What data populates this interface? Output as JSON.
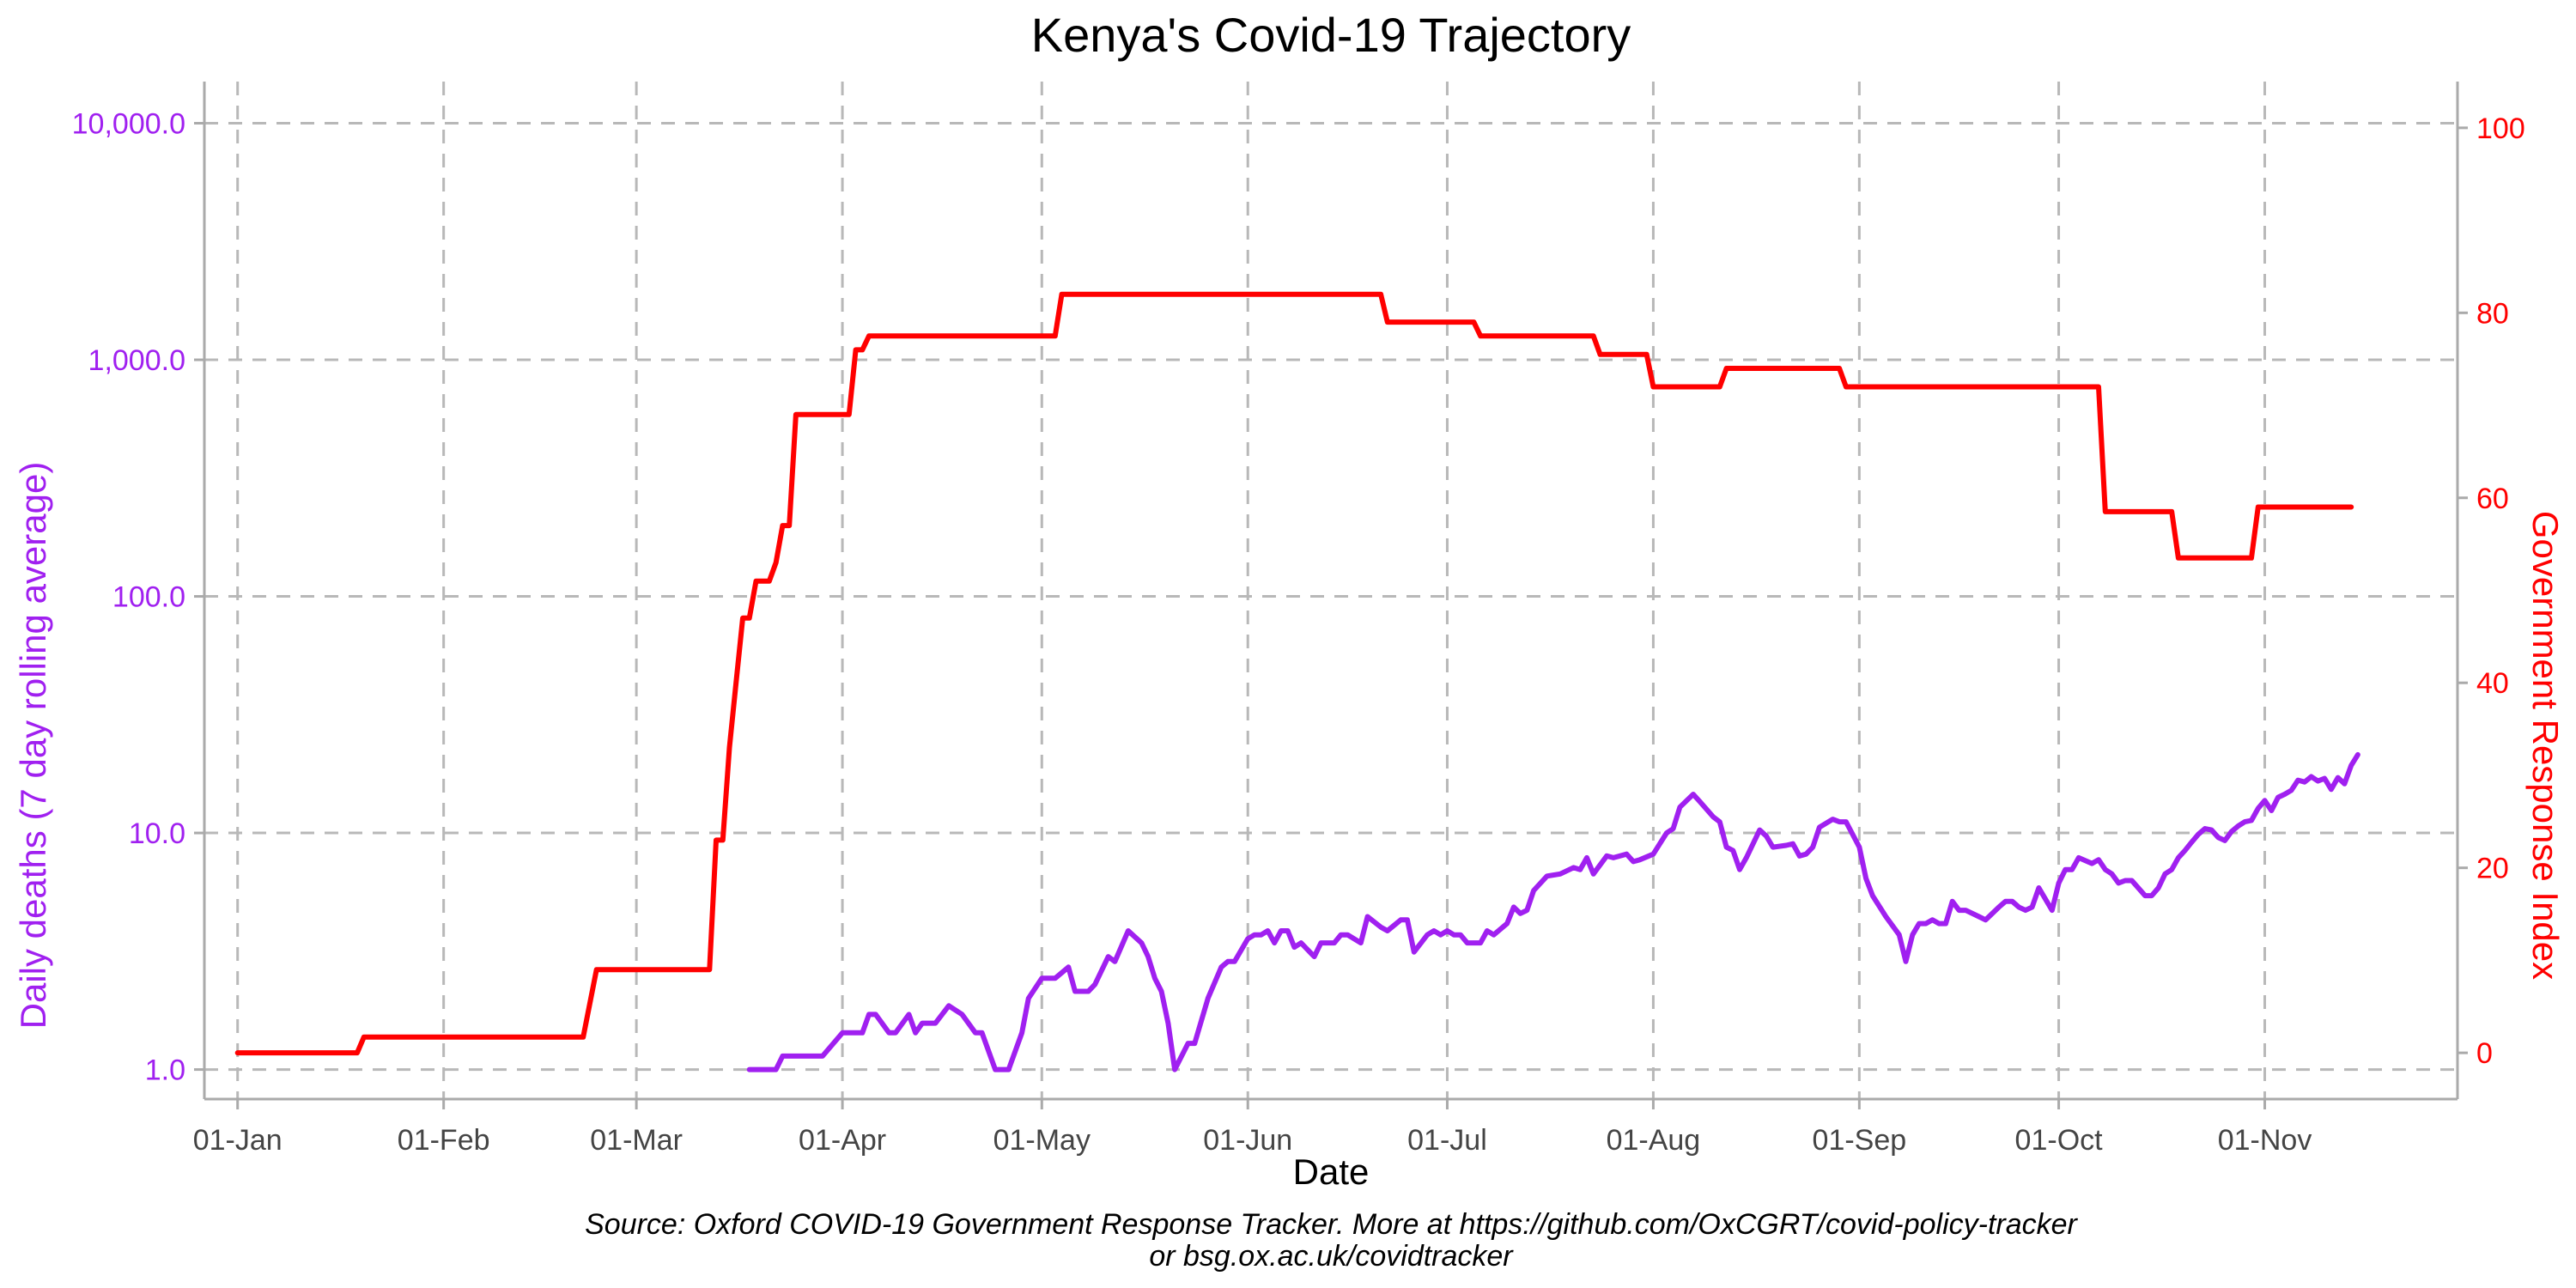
{
  "chart_data": {
    "type": "line",
    "title": "Kenya's Covid-19 Trajectory",
    "xlabel": "Date",
    "ylabel_left": "Daily deaths (7 day rolling average)",
    "ylabel_right": "Government Response Index",
    "caption_line1": "Source: Oxford COVID-19 Government Response Tracker. More at https://github.com/OxCGRT/covid-policy-tracker",
    "caption_line2": "or bsg.ox.ac.uk/covidtracker",
    "x_range": [
      "2019-12-27",
      "2020-11-30"
    ],
    "y_left": {
      "scale": "log10",
      "range": [
        0.75,
        15000
      ],
      "ticks": [
        1,
        10,
        100,
        1000,
        10000
      ],
      "tick_labels": [
        "1.0",
        "10.0",
        "100.0",
        "1,000.0",
        "10,000.0"
      ],
      "color": "#a020f0"
    },
    "y_right": {
      "scale": "linear",
      "range": [
        -5,
        105
      ],
      "ticks": [
        0,
        20,
        40,
        60,
        80,
        100
      ],
      "tick_labels": [
        "0",
        "20",
        "40",
        "60",
        "80",
        "100"
      ],
      "color": "#ff0000"
    },
    "x_ticks": [
      {
        "date": "2020-01-01",
        "label": "01-Jan"
      },
      {
        "date": "2020-02-01",
        "label": "01-Feb"
      },
      {
        "date": "2020-03-01",
        "label": "01-Mar"
      },
      {
        "date": "2020-04-01",
        "label": "01-Apr"
      },
      {
        "date": "2020-05-01",
        "label": "01-May"
      },
      {
        "date": "2020-06-01",
        "label": "01-Jun"
      },
      {
        "date": "2020-07-01",
        "label": "01-Jul"
      },
      {
        "date": "2020-08-01",
        "label": "01-Aug"
      },
      {
        "date": "2020-09-01",
        "label": "01-Sep"
      },
      {
        "date": "2020-10-01",
        "label": "01-Oct"
      },
      {
        "date": "2020-11-01",
        "label": "01-Nov"
      }
    ],
    "grid": true,
    "series": [
      {
        "axis": "right",
        "color": "#ff0000",
        "points": [
          [
            "2020-01-01",
            0
          ],
          [
            "2020-01-19",
            0
          ],
          [
            "2020-01-20",
            1.7
          ],
          [
            "2020-02-22",
            1.7
          ],
          [
            "2020-02-24",
            9
          ],
          [
            "2020-03-12",
            9
          ],
          [
            "2020-03-13",
            23
          ],
          [
            "2020-03-14",
            23
          ],
          [
            "2020-03-15",
            33
          ],
          [
            "2020-03-16",
            40
          ],
          [
            "2020-03-17",
            47
          ],
          [
            "2020-03-18",
            47
          ],
          [
            "2020-03-19",
            51
          ],
          [
            "2020-03-21",
            51
          ],
          [
            "2020-03-22",
            53
          ],
          [
            "2020-03-23",
            57
          ],
          [
            "2020-03-24",
            57
          ],
          [
            "2020-03-25",
            69
          ],
          [
            "2020-03-26",
            69
          ],
          [
            "2020-04-02",
            69
          ],
          [
            "2020-04-03",
            76
          ],
          [
            "2020-04-04",
            76
          ],
          [
            "2020-04-05",
            77.5
          ],
          [
            "2020-05-03",
            77.5
          ],
          [
            "2020-05-04",
            82
          ],
          [
            "2020-06-21",
            82
          ],
          [
            "2020-06-22",
            79
          ],
          [
            "2020-07-05",
            79
          ],
          [
            "2020-07-06",
            77.5
          ],
          [
            "2020-07-23",
            77.5
          ],
          [
            "2020-07-24",
            75.5
          ],
          [
            "2020-07-31",
            75.5
          ],
          [
            "2020-08-01",
            72
          ],
          [
            "2020-08-11",
            72
          ],
          [
            "2020-08-12",
            74
          ],
          [
            "2020-08-29",
            74
          ],
          [
            "2020-08-30",
            72
          ],
          [
            "2020-10-07",
            72
          ],
          [
            "2020-10-08",
            58.5
          ],
          [
            "2020-10-18",
            58.5
          ],
          [
            "2020-10-19",
            53.5
          ],
          [
            "2020-10-30",
            53.5
          ],
          [
            "2020-10-31",
            59
          ],
          [
            "2020-11-14",
            59
          ]
        ]
      },
      {
        "axis": "left",
        "color": "#a020f0",
        "points": [
          [
            "2020-03-18",
            1.0
          ],
          [
            "2020-03-22",
            1.0
          ],
          [
            "2020-03-23",
            1.14
          ],
          [
            "2020-03-29",
            1.14
          ],
          [
            "2020-04-01",
            1.43
          ],
          [
            "2020-04-04",
            1.43
          ],
          [
            "2020-04-05",
            1.71
          ],
          [
            "2020-04-06",
            1.71
          ],
          [
            "2020-04-08",
            1.43
          ],
          [
            "2020-04-09",
            1.43
          ],
          [
            "2020-04-11",
            1.71
          ],
          [
            "2020-04-12",
            1.43
          ],
          [
            "2020-04-13",
            1.57
          ],
          [
            "2020-04-15",
            1.57
          ],
          [
            "2020-04-17",
            1.86
          ],
          [
            "2020-04-19",
            1.71
          ],
          [
            "2020-04-21",
            1.43
          ],
          [
            "2020-04-22",
            1.43
          ],
          [
            "2020-04-24",
            1.0
          ],
          [
            "2020-04-26",
            1.0
          ],
          [
            "2020-04-28",
            1.43
          ],
          [
            "2020-04-29",
            2.0
          ],
          [
            "2020-05-01",
            2.43
          ],
          [
            "2020-05-03",
            2.43
          ],
          [
            "2020-05-05",
            2.71
          ],
          [
            "2020-05-06",
            2.14
          ],
          [
            "2020-05-08",
            2.14
          ],
          [
            "2020-05-09",
            2.29
          ],
          [
            "2020-05-11",
            3.0
          ],
          [
            "2020-05-12",
            2.86
          ],
          [
            "2020-05-14",
            3.86
          ],
          [
            "2020-05-16",
            3.43
          ],
          [
            "2020-05-17",
            3.0
          ],
          [
            "2020-05-18",
            2.43
          ],
          [
            "2020-05-19",
            2.14
          ],
          [
            "2020-05-20",
            1.57
          ],
          [
            "2020-05-21",
            1.0
          ],
          [
            "2020-05-23",
            1.29
          ],
          [
            "2020-05-24",
            1.29
          ],
          [
            "2020-05-26",
            2.0
          ],
          [
            "2020-05-28",
            2.71
          ],
          [
            "2020-05-29",
            2.86
          ],
          [
            "2020-05-30",
            2.86
          ],
          [
            "2020-06-01",
            3.57
          ],
          [
            "2020-06-02",
            3.71
          ],
          [
            "2020-06-03",
            3.71
          ],
          [
            "2020-06-04",
            3.86
          ],
          [
            "2020-06-05",
            3.43
          ],
          [
            "2020-06-06",
            3.86
          ],
          [
            "2020-06-07",
            3.86
          ],
          [
            "2020-06-08",
            3.29
          ],
          [
            "2020-06-09",
            3.43
          ],
          [
            "2020-06-11",
            3.0
          ],
          [
            "2020-06-12",
            3.43
          ],
          [
            "2020-06-14",
            3.43
          ],
          [
            "2020-06-15",
            3.71
          ],
          [
            "2020-06-16",
            3.71
          ],
          [
            "2020-06-18",
            3.43
          ],
          [
            "2020-06-19",
            4.43
          ],
          [
            "2020-06-21",
            4.0
          ],
          [
            "2020-06-22",
            3.86
          ],
          [
            "2020-06-24",
            4.29
          ],
          [
            "2020-06-25",
            4.29
          ],
          [
            "2020-06-26",
            3.14
          ],
          [
            "2020-06-28",
            3.71
          ],
          [
            "2020-06-29",
            3.86
          ],
          [
            "2020-06-30",
            3.71
          ],
          [
            "2020-07-01",
            3.86
          ],
          [
            "2020-07-02",
            3.71
          ],
          [
            "2020-07-03",
            3.71
          ],
          [
            "2020-07-04",
            3.43
          ],
          [
            "2020-07-06",
            3.43
          ],
          [
            "2020-07-07",
            3.86
          ],
          [
            "2020-07-08",
            3.71
          ],
          [
            "2020-07-10",
            4.14
          ],
          [
            "2020-07-11",
            4.86
          ],
          [
            "2020-07-12",
            4.57
          ],
          [
            "2020-07-13",
            4.71
          ],
          [
            "2020-07-14",
            5.71
          ],
          [
            "2020-07-16",
            6.57
          ],
          [
            "2020-07-18",
            6.71
          ],
          [
            "2020-07-20",
            7.14
          ],
          [
            "2020-07-21",
            7.0
          ],
          [
            "2020-07-22",
            7.86
          ],
          [
            "2020-07-23",
            6.71
          ],
          [
            "2020-07-25",
            8.0
          ],
          [
            "2020-07-26",
            7.86
          ],
          [
            "2020-07-28",
            8.14
          ],
          [
            "2020-07-29",
            7.57
          ],
          [
            "2020-07-30",
            7.71
          ],
          [
            "2020-08-01",
            8.14
          ],
          [
            "2020-08-03",
            10.0
          ],
          [
            "2020-08-04",
            10.43
          ],
          [
            "2020-08-05",
            12.86
          ],
          [
            "2020-08-07",
            14.57
          ],
          [
            "2020-08-08",
            13.57
          ],
          [
            "2020-08-10",
            11.71
          ],
          [
            "2020-08-11",
            11.14
          ],
          [
            "2020-08-12",
            8.71
          ],
          [
            "2020-08-13",
            8.43
          ],
          [
            "2020-08-14",
            7.0
          ],
          [
            "2020-08-15",
            7.86
          ],
          [
            "2020-08-17",
            10.29
          ],
          [
            "2020-08-18",
            9.71
          ],
          [
            "2020-08-19",
            8.71
          ],
          [
            "2020-08-21",
            8.86
          ],
          [
            "2020-08-22",
            9.0
          ],
          [
            "2020-08-23",
            8.0
          ],
          [
            "2020-08-24",
            8.14
          ],
          [
            "2020-08-25",
            8.71
          ],
          [
            "2020-08-26",
            10.57
          ],
          [
            "2020-08-28",
            11.43
          ],
          [
            "2020-08-29",
            11.14
          ],
          [
            "2020-08-30",
            11.14
          ],
          [
            "2020-09-01",
            8.71
          ],
          [
            "2020-09-02",
            6.43
          ],
          [
            "2020-09-03",
            5.43
          ],
          [
            "2020-09-05",
            4.43
          ],
          [
            "2020-09-07",
            3.71
          ],
          [
            "2020-09-08",
            2.86
          ],
          [
            "2020-09-09",
            3.71
          ],
          [
            "2020-09-10",
            4.14
          ],
          [
            "2020-09-11",
            4.14
          ],
          [
            "2020-09-12",
            4.29
          ],
          [
            "2020-09-13",
            4.14
          ],
          [
            "2020-09-14",
            4.14
          ],
          [
            "2020-09-15",
            5.14
          ],
          [
            "2020-09-16",
            4.71
          ],
          [
            "2020-09-17",
            4.71
          ],
          [
            "2020-09-19",
            4.43
          ],
          [
            "2020-09-20",
            4.29
          ],
          [
            "2020-09-21",
            4.57
          ],
          [
            "2020-09-22",
            4.86
          ],
          [
            "2020-09-23",
            5.14
          ],
          [
            "2020-09-24",
            5.14
          ],
          [
            "2020-09-25",
            4.86
          ],
          [
            "2020-09-26",
            4.71
          ],
          [
            "2020-09-27",
            4.86
          ],
          [
            "2020-09-28",
            5.86
          ],
          [
            "2020-09-30",
            4.71
          ],
          [
            "2020-10-01",
            6.14
          ],
          [
            "2020-10-02",
            7.0
          ],
          [
            "2020-10-03",
            7.0
          ],
          [
            "2020-10-04",
            7.86
          ],
          [
            "2020-10-06",
            7.43
          ],
          [
            "2020-10-07",
            7.71
          ],
          [
            "2020-10-08",
            7.0
          ],
          [
            "2020-10-09",
            6.71
          ],
          [
            "2020-10-10",
            6.14
          ],
          [
            "2020-10-11",
            6.29
          ],
          [
            "2020-10-12",
            6.29
          ],
          [
            "2020-10-14",
            5.43
          ],
          [
            "2020-10-15",
            5.43
          ],
          [
            "2020-10-16",
            5.86
          ],
          [
            "2020-10-17",
            6.71
          ],
          [
            "2020-10-18",
            7.0
          ],
          [
            "2020-10-19",
            7.86
          ],
          [
            "2020-10-20",
            8.43
          ],
          [
            "2020-10-21",
            9.14
          ],
          [
            "2020-10-22",
            9.86
          ],
          [
            "2020-10-23",
            10.43
          ],
          [
            "2020-10-24",
            10.29
          ],
          [
            "2020-10-25",
            9.57
          ],
          [
            "2020-10-26",
            9.29
          ],
          [
            "2020-10-27",
            10.14
          ],
          [
            "2020-10-28",
            10.71
          ],
          [
            "2020-10-29",
            11.14
          ],
          [
            "2020-10-30",
            11.29
          ],
          [
            "2020-10-31",
            12.71
          ],
          [
            "2020-11-01",
            13.71
          ],
          [
            "2020-11-02",
            12.43
          ],
          [
            "2020-11-03",
            14.14
          ],
          [
            "2020-11-04",
            14.57
          ],
          [
            "2020-11-05",
            15.14
          ],
          [
            "2020-11-06",
            16.71
          ],
          [
            "2020-11-07",
            16.43
          ],
          [
            "2020-11-08",
            17.29
          ],
          [
            "2020-11-09",
            16.57
          ],
          [
            "2020-11-10",
            17.0
          ],
          [
            "2020-11-11",
            15.29
          ],
          [
            "2020-11-12",
            17.14
          ],
          [
            "2020-11-13",
            16.14
          ],
          [
            "2020-11-14",
            19.29
          ],
          [
            "2020-11-15",
            21.43
          ]
        ]
      }
    ]
  }
}
